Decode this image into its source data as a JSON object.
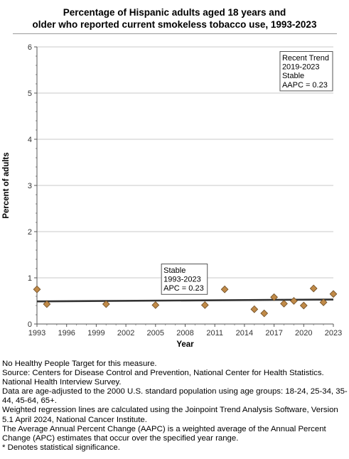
{
  "chart_data": {
    "type": "scatter",
    "title_lines": [
      "Percentage of Hispanic adults aged 18 years and",
      "older who reported current smokeless tobacco use, 1993-2023"
    ],
    "xlabel": "Year",
    "ylabel": "Percent of adults",
    "xlim": [
      1993,
      2023
    ],
    "ylim": [
      0,
      6
    ],
    "x_ticks": [
      "1993",
      "1996",
      "1999",
      "2002",
      "2005",
      "2008",
      "2011",
      "2014",
      "2017",
      "2020",
      "2023"
    ],
    "y_ticks": [
      "0",
      "1",
      "2",
      "3",
      "4",
      "5",
      "6"
    ],
    "grid": true,
    "series": [
      {
        "points": [
          {
            "x": 1993,
            "y": 0.75
          },
          {
            "x": 1994,
            "y": 0.43
          },
          {
            "x": 2000,
            "y": 0.43
          },
          {
            "x": 2005,
            "y": 0.41
          },
          {
            "x": 2010,
            "y": 0.41
          },
          {
            "x": 2012,
            "y": 0.75
          },
          {
            "x": 2015,
            "y": 0.32
          },
          {
            "x": 2016,
            "y": 0.23
          },
          {
            "x": 2017,
            "y": 0.58
          },
          {
            "x": 2018,
            "y": 0.44
          },
          {
            "x": 2019,
            "y": 0.5
          },
          {
            "x": 2020,
            "y": 0.4
          },
          {
            "x": 2021,
            "y": 0.77
          },
          {
            "x": 2022,
            "y": 0.47
          },
          {
            "x": 2023,
            "y": 0.65
          }
        ],
        "marker": "diamond",
        "color": "#c08a48"
      }
    ],
    "trend_line": {
      "x": [
        1993,
        2023
      ],
      "y": [
        0.49,
        0.53
      ],
      "color": "#333333"
    },
    "annotations": [
      {
        "lines": [
          "Recent Trend",
          "2019-2023",
          "Stable",
          "AAPC =  0.23"
        ],
        "anchor": {
          "x": 2017.6,
          "y": 5.9
        }
      },
      {
        "lines": [
          "Stable",
          "1993-2023",
          "APC =  0.23"
        ],
        "anchor": {
          "x": 2005.6,
          "y": 1.3
        }
      }
    ]
  },
  "footnotes": [
    "No Healthy People Target for this measure.",
    "Source: Centers for Disease Control and Prevention, National Center for Health Statistics. National Health Interview Survey.",
    "Data are age-adjusted to the 2000 U.S. standard population using age groups: 18-24, 25-34, 35-44, 45-64, 65+.",
    "Weighted regression lines are calculated using the Joinpoint Trend Analysis Software, Version 5.1 April 2024, National Cancer Institute.",
    "The Average Annual Percent Change (AAPC) is a weighted average of the Annual Percent Change (APC) estimates that occur over the specified year range.",
    "* Denotes statistical significance."
  ]
}
